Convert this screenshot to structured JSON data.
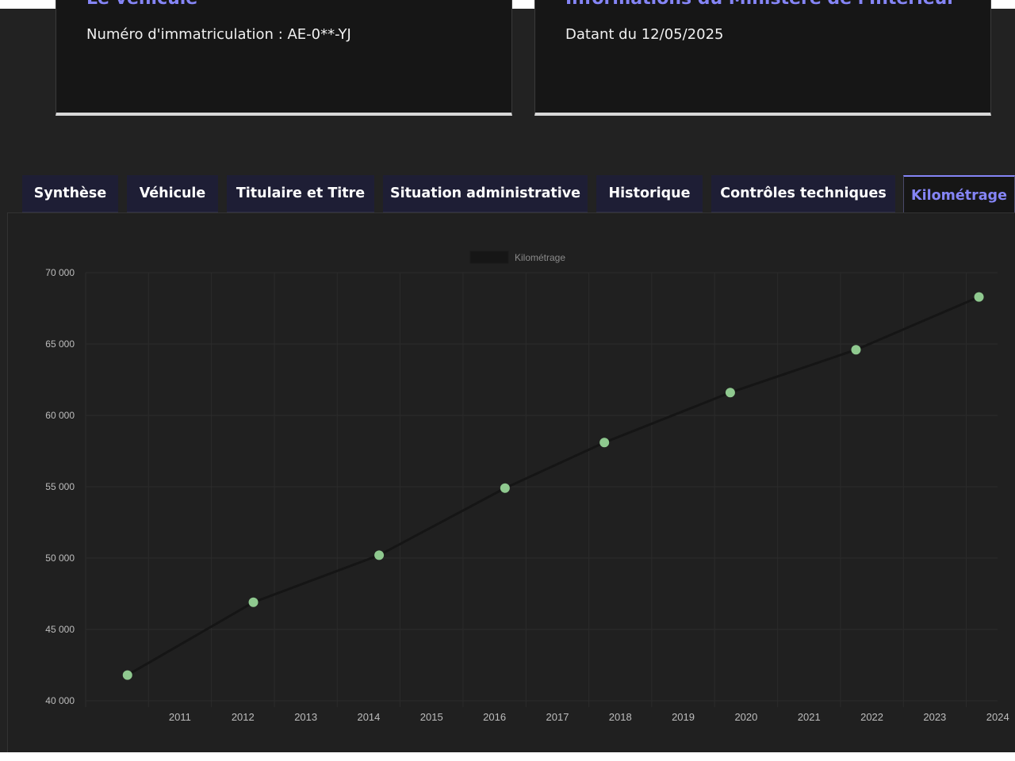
{
  "cards": [
    {
      "title": "Le véhicule",
      "text": "Numéro d'immatriculation : AE-0**-YJ"
    },
    {
      "title": "Informations du Ministère de l'Intérieur",
      "text": "Datant du 12/05/2025"
    }
  ],
  "tabs": [
    {
      "label": "Synthèse",
      "active": false
    },
    {
      "label": "Véhicule",
      "active": false
    },
    {
      "label": "Titulaire et Titre",
      "active": false
    },
    {
      "label": "Situation administrative",
      "active": false
    },
    {
      "label": "Historique",
      "active": false
    },
    {
      "label": "Contrôles techniques",
      "active": false
    },
    {
      "label": "Kilométrage",
      "active": true
    }
  ],
  "colors": {
    "accent": "#8585f6",
    "point": "#8fc98f",
    "line": "#151515",
    "grid": "#2b2b2b",
    "tick": "#bdbdbd"
  },
  "chart_data": {
    "type": "line",
    "legend": "top-center",
    "grid": true,
    "series": [
      {
        "name": "Kilométrage",
        "x": [
          "2010-09-01",
          "2012-09-01",
          "2014-09-01",
          "2016-09-01",
          "2018-04-01",
          "2020-04-01",
          "2022-04-01",
          "2024-03-15"
        ],
        "values": [
          41800,
          46900,
          50200,
          54900,
          58100,
          61600,
          64600,
          68300
        ]
      }
    ],
    "xticks": [
      "2011",
      "2012",
      "2013",
      "2014",
      "2015",
      "2016",
      "2017",
      "2018",
      "2019",
      "2020",
      "2021",
      "2022",
      "2023",
      "2024"
    ],
    "yticks": [
      "40 000",
      "45 000",
      "50 000",
      "55 000",
      "60 000",
      "65 000",
      "70 000"
    ],
    "ylim": [
      40000,
      70000
    ]
  }
}
